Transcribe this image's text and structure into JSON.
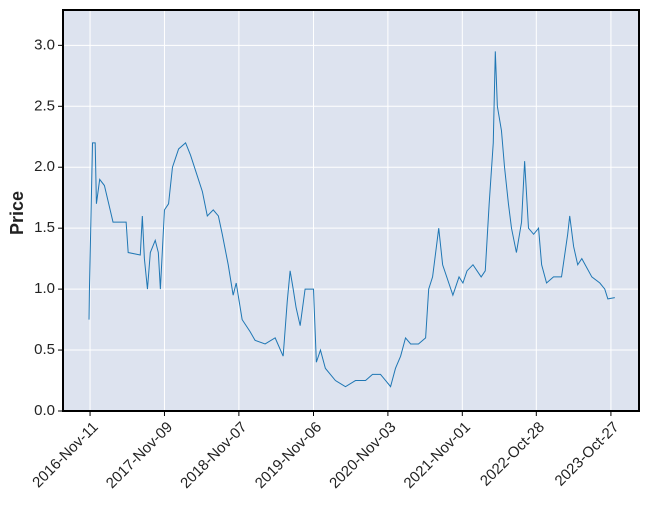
{
  "chart_data": {
    "type": "line",
    "ylabel": "Price",
    "color": "#1f77b4",
    "grid": true,
    "x": [
      "2016-11-06",
      "2016-11-08",
      "2016-11-13",
      "2016-11-23",
      "2016-12-06",
      "2016-12-12",
      "2016-12-28",
      "2017-01-20",
      "2017-02-10",
      "2017-03-03",
      "2017-05-06",
      "2017-05-16",
      "2017-07-14",
      "2017-07-24",
      "2017-08-03",
      "2017-08-18",
      "2017-09-01",
      "2017-09-25",
      "2017-10-10",
      "2017-10-20",
      "2017-11-09",
      "2017-11-29",
      "2017-12-18",
      "2018-01-17",
      "2018-02-20",
      "2018-03-16",
      "2018-04-14",
      "2018-05-13",
      "2018-06-06",
      "2018-07-05",
      "2018-07-30",
      "2018-08-18",
      "2018-09-16",
      "2018-10-10",
      "2018-10-25",
      "2018-11-23",
      "2019-01-01",
      "2019-01-25",
      "2019-03-15",
      "2019-05-03",
      "2019-06-11",
      "2019-07-01",
      "2019-07-15",
      "2019-07-30",
      "2019-08-13",
      "2019-09-02",
      "2019-09-26",
      "2019-10-21",
      "2019-11-06",
      "2019-11-20",
      "2019-12-10",
      "2020-01-03",
      "2020-02-21",
      "2020-04-10",
      "2020-05-29",
      "2020-07-17",
      "2020-08-20",
      "2020-09-28",
      "2020-10-23",
      "2020-11-16",
      "2020-12-10",
      "2021-01-04",
      "2021-01-28",
      "2021-02-22",
      "2021-04-01",
      "2021-05-06",
      "2021-05-21",
      "2021-06-09",
      "2021-06-24",
      "2021-07-09",
      "2021-07-28",
      "2021-08-27",
      "2021-09-16",
      "2021-10-16",
      "2021-11-04",
      "2021-11-24",
      "2021-12-23",
      "2022-02-01",
      "2022-02-21",
      "2022-03-12",
      "2022-04-01",
      "2022-04-11",
      "2022-04-21",
      "2022-05-11",
      "2022-05-26",
      "2022-06-14",
      "2022-06-29",
      "2022-07-23",
      "2022-08-17",
      "2022-09-01",
      "2022-09-20",
      "2022-10-15",
      "2022-11-08",
      "2022-11-23",
      "2022-12-17",
      "2023-01-20",
      "2023-02-28",
      "2023-03-30",
      "2023-04-09",
      "2023-04-28",
      "2023-05-18",
      "2023-06-07",
      "2023-07-26",
      "2023-09-03",
      "2023-09-27",
      "2023-10-12",
      "2023-11-15"
    ],
    "values": [
      0.75,
      1.0,
      1.4,
      2.2,
      2.2,
      1.7,
      1.9,
      1.85,
      1.7,
      1.55,
      1.55,
      1.3,
      1.28,
      1.6,
      1.25,
      1.0,
      1.3,
      1.4,
      1.3,
      1.0,
      1.65,
      1.7,
      2.0,
      2.15,
      2.2,
      2.1,
      1.95,
      1.8,
      1.6,
      1.65,
      1.6,
      1.45,
      1.2,
      0.95,
      1.05,
      0.75,
      0.65,
      0.58,
      0.55,
      0.6,
      0.45,
      0.9,
      1.15,
      1.0,
      0.85,
      0.7,
      1.0,
      1.0,
      1.0,
      0.4,
      0.5,
      0.35,
      0.25,
      0.2,
      0.25,
      0.25,
      0.3,
      0.3,
      0.25,
      0.2,
      0.35,
      0.45,
      0.6,
      0.55,
      0.55,
      0.6,
      1.0,
      1.1,
      1.3,
      1.5,
      1.2,
      1.05,
      0.95,
      1.1,
      1.05,
      1.15,
      1.2,
      1.1,
      1.15,
      1.7,
      2.2,
      2.95,
      2.5,
      2.3,
      2.0,
      1.7,
      1.5,
      1.3,
      1.55,
      2.05,
      1.5,
      1.45,
      1.5,
      1.2,
      1.05,
      1.1,
      1.1,
      1.45,
      1.6,
      1.35,
      1.2,
      1.25,
      1.1,
      1.05,
      1.0,
      0.92,
      0.93
    ],
    "xlim": [
      "2016-07-02",
      "2024-03-12"
    ],
    "xticks": [
      {
        "value": "2016-11-11",
        "label": "2016-Nov-11"
      },
      {
        "value": "2017-11-09",
        "label": "2017-Nov-09"
      },
      {
        "value": "2018-11-07",
        "label": "2018-Nov-07"
      },
      {
        "value": "2019-11-06",
        "label": "2019-Nov-06"
      },
      {
        "value": "2020-11-03",
        "label": "2020-Nov-03"
      },
      {
        "value": "2021-11-01",
        "label": "2021-Nov-01"
      },
      {
        "value": "2022-10-28",
        "label": "2022-Oct-28"
      },
      {
        "value": "2023-10-27",
        "label": "2023-Oct-27"
      }
    ],
    "ylim": [
      0,
      3.29
    ],
    "yticks": [
      {
        "value": 0,
        "label": "0.0"
      },
      0.5,
      {
        "value": 1,
        "label": "1.0"
      },
      1.5,
      {
        "value": 2,
        "label": "2.0"
      },
      2.5,
      {
        "value": 3,
        "label": "3.0"
      }
    ]
  }
}
